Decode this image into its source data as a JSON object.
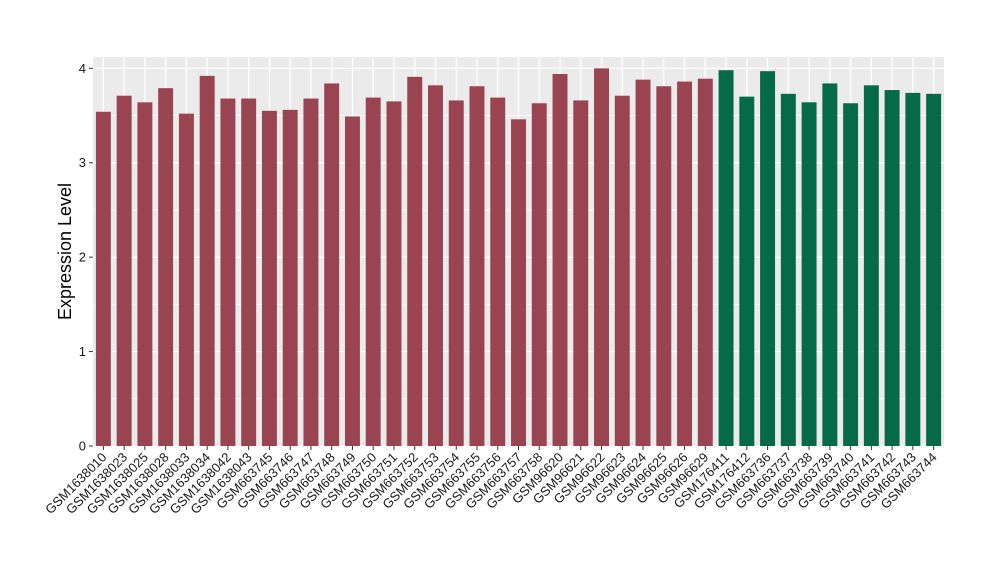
{
  "chart_data": {
    "type": "bar",
    "title": "",
    "xlabel": "",
    "ylabel": "Expression Level",
    "ylim": [
      0,
      4.12
    ],
    "yticks": [
      0,
      1,
      2,
      3,
      4
    ],
    "grid": true,
    "legend": "none",
    "background_color": "#ebebeb",
    "grid_color": "#ffffff",
    "categories": [
      "GSM1638010",
      "GSM1638023",
      "GSM1638025",
      "GSM1638028",
      "GSM1638033",
      "GSM1638034",
      "GSM1638042",
      "GSM1638043",
      "GSM663745",
      "GSM663746",
      "GSM663747",
      "GSM663748",
      "GSM663749",
      "GSM663750",
      "GSM663751",
      "GSM663752",
      "GSM663753",
      "GSM663754",
      "GSM663755",
      "GSM663756",
      "GSM663757",
      "GSM663758",
      "GSM96620",
      "GSM96621",
      "GSM96622",
      "GSM96623",
      "GSM96624",
      "GSM96625",
      "GSM96626",
      "GSM96629",
      "GSM176411",
      "GSM176412",
      "GSM663736",
      "GSM663737",
      "GSM663738",
      "GSM663739",
      "GSM663740",
      "GSM663741",
      "GSM663742",
      "GSM663743",
      "GSM663744"
    ],
    "values": [
      3.54,
      3.71,
      3.64,
      3.79,
      3.52,
      3.92,
      3.68,
      3.68,
      3.55,
      3.56,
      3.68,
      3.84,
      3.49,
      3.69,
      3.65,
      3.91,
      3.82,
      3.66,
      3.81,
      3.69,
      3.46,
      3.63,
      3.94,
      3.66,
      4.0,
      3.71,
      3.88,
      3.81,
      3.86,
      3.89,
      3.98,
      3.7,
      3.97,
      3.73,
      3.64,
      3.84,
      3.63,
      3.82,
      3.77,
      3.74,
      3.73
    ],
    "colors": [
      "#9b4451",
      "#9b4451",
      "#9b4451",
      "#9b4451",
      "#9b4451",
      "#9b4451",
      "#9b4451",
      "#9b4451",
      "#9b4451",
      "#9b4451",
      "#9b4451",
      "#9b4451",
      "#9b4451",
      "#9b4451",
      "#9b4451",
      "#9b4451",
      "#9b4451",
      "#9b4451",
      "#9b4451",
      "#9b4451",
      "#9b4451",
      "#9b4451",
      "#9b4451",
      "#9b4451",
      "#9b4451",
      "#9b4451",
      "#9b4451",
      "#9b4451",
      "#9b4451",
      "#9b4451",
      "#046a47",
      "#046a47",
      "#046a47",
      "#046a47",
      "#046a47",
      "#046a47",
      "#046a47",
      "#046a47",
      "#046a47",
      "#046a47",
      "#046a47"
    ]
  }
}
